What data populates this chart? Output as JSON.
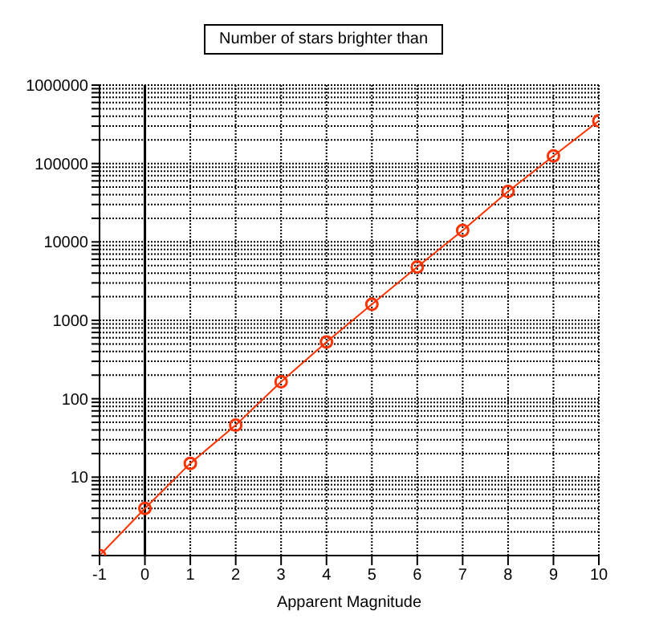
{
  "chart_data": {
    "type": "line",
    "title": "Number of stars brighter than",
    "xlabel": "Apparent Magnitude",
    "x": [
      -1,
      0,
      1,
      2,
      3,
      4,
      5,
      6,
      7,
      8,
      9,
      10
    ],
    "series": [
      {
        "color": "#ff3300",
        "values": [
          1,
          4,
          15,
          46,
          165,
          530,
          1600,
          4800,
          14000,
          44000,
          125000,
          350000
        ]
      }
    ],
    "xlim": [
      -1,
      10
    ],
    "xticks": [
      -1,
      0,
      1,
      2,
      3,
      4,
      5,
      6,
      7,
      8,
      9,
      10
    ],
    "ylim": [
      1,
      1000000
    ],
    "yticks": [
      {
        "value": 1,
        "label": null
      },
      {
        "value": 2,
        "label": null
      },
      {
        "value": 3,
        "label": null
      },
      {
        "value": 4,
        "label": null
      },
      {
        "value": 5,
        "label": null
      },
      {
        "value": 6,
        "label": null
      },
      {
        "value": 7,
        "label": null
      },
      {
        "value": 8,
        "label": null
      },
      {
        "value": 9,
        "label": null
      },
      10,
      {
        "value": 20,
        "label": null
      },
      {
        "value": 30,
        "label": null
      },
      {
        "value": 40,
        "label": null
      },
      {
        "value": 50,
        "label": null
      },
      {
        "value": 60,
        "label": null
      },
      {
        "value": 70,
        "label": null
      },
      {
        "value": 80,
        "label": null
      },
      {
        "value": 90,
        "label": null
      },
      100,
      {
        "value": 200,
        "label": null
      },
      {
        "value": 300,
        "label": null
      },
      {
        "value": 400,
        "label": null
      },
      {
        "value": 500,
        "label": null
      },
      {
        "value": 600,
        "label": null
      },
      {
        "value": 700,
        "label": null
      },
      {
        "value": 800,
        "label": null
      },
      {
        "value": 900,
        "label": null
      },
      1000,
      {
        "value": 2000,
        "label": null
      },
      {
        "value": 3000,
        "label": null
      },
      {
        "value": 4000,
        "label": null
      },
      {
        "value": 5000,
        "label": null
      },
      {
        "value": 6000,
        "label": null
      },
      {
        "value": 7000,
        "label": null
      },
      {
        "value": 8000,
        "label": null
      },
      {
        "value": 9000,
        "label": null
      },
      10000,
      {
        "value": 20000,
        "label": null
      },
      {
        "value": 30000,
        "label": null
      },
      {
        "value": 40000,
        "label": null
      },
      {
        "value": 50000,
        "label": null
      },
      {
        "value": 60000,
        "label": null
      },
      {
        "value": 70000,
        "label": null
      },
      {
        "value": 80000,
        "label": null
      },
      {
        "value": 90000,
        "label": null
      },
      100000,
      {
        "value": 200000,
        "label": null
      },
      {
        "value": 300000,
        "label": null
      },
      {
        "value": 400000,
        "label": null
      },
      {
        "value": 500000,
        "label": null
      },
      {
        "value": 600000,
        "label": null
      },
      {
        "value": 700000,
        "label": null
      },
      {
        "value": 800000,
        "label": null
      },
      {
        "value": 900000,
        "label": null
      },
      1000000
    ],
    "log": "y",
    "grid": true,
    "marker": "circle",
    "line_style": "solid",
    "ref_lines": [
      {
        "axis": "x",
        "value": 0,
        "color": "#000000"
      }
    ]
  }
}
